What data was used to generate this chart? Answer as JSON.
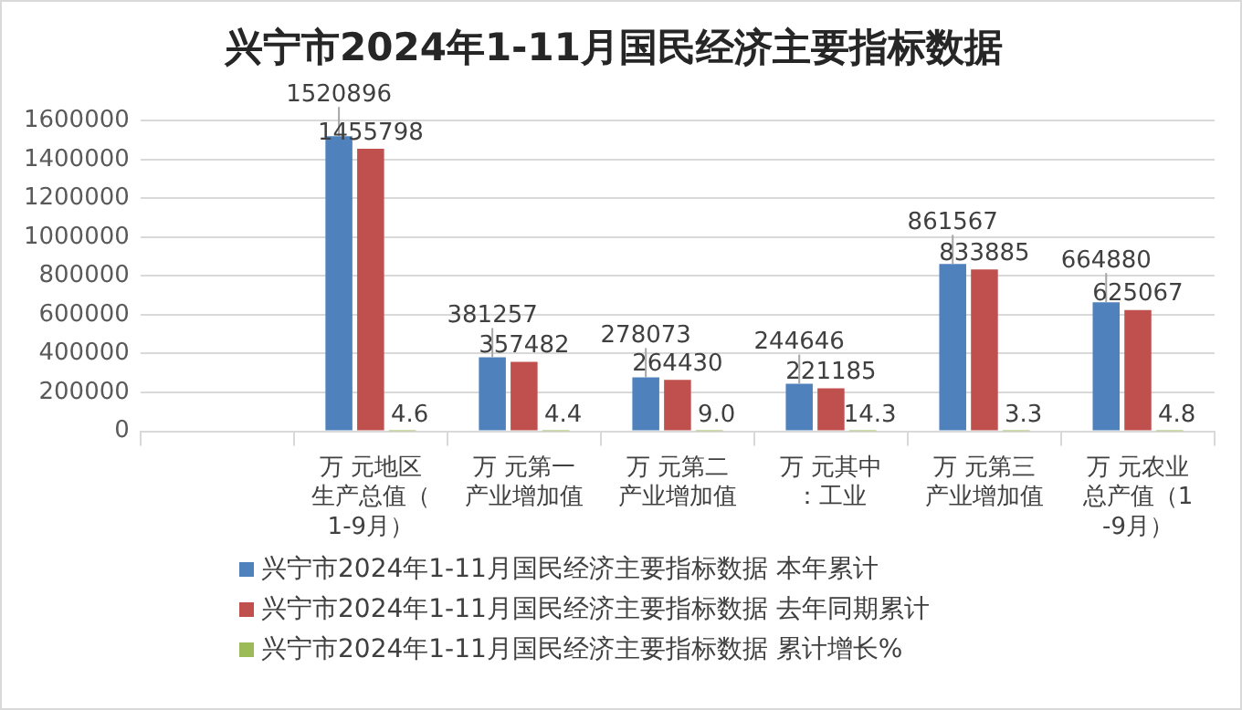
{
  "chart_data": {
    "type": "bar",
    "title": "兴宁市2024年1-11月国民经济主要指标数据",
    "categories": [
      null,
      "万 元地区生产总值（1-9月）",
      "万 元第一产业增加值",
      "万 元第二产业增加值",
      "万 元其中：工业",
      "万 元第三产业增加值",
      "万 元农业总产值（1-9月）"
    ],
    "series": [
      {
        "name": "兴宁市2024年1-11月国民经济主要指标数据 本年累计",
        "color": "#4f81bd",
        "values": [
          null,
          1520896,
          381257,
          278073,
          244646,
          861567,
          664880
        ]
      },
      {
        "name": "兴宁市2024年1-11月国民经济主要指标数据 去年同期累计",
        "color": "#c0504d",
        "values": [
          null,
          1455798,
          357482,
          264430,
          221185,
          833885,
          625067
        ]
      },
      {
        "name": "兴宁市2024年1-11月国民经济主要指标数据 累计增长%",
        "color": "#9bbb59",
        "values": [
          null,
          4.6,
          4.4,
          9.0,
          14.3,
          3.3,
          4.8
        ],
        "value_labels": [
          null,
          "4.6",
          "4.4",
          "9.0",
          "14.3",
          "3.3",
          "4.8"
        ]
      }
    ],
    "ylim": [
      0,
      1600000
    ],
    "yticks": [
      0,
      200000,
      400000,
      600000,
      800000,
      1000000,
      1200000,
      1400000,
      1600000
    ],
    "grid": "y",
    "legend": "bottom",
    "data_labels": true
  }
}
